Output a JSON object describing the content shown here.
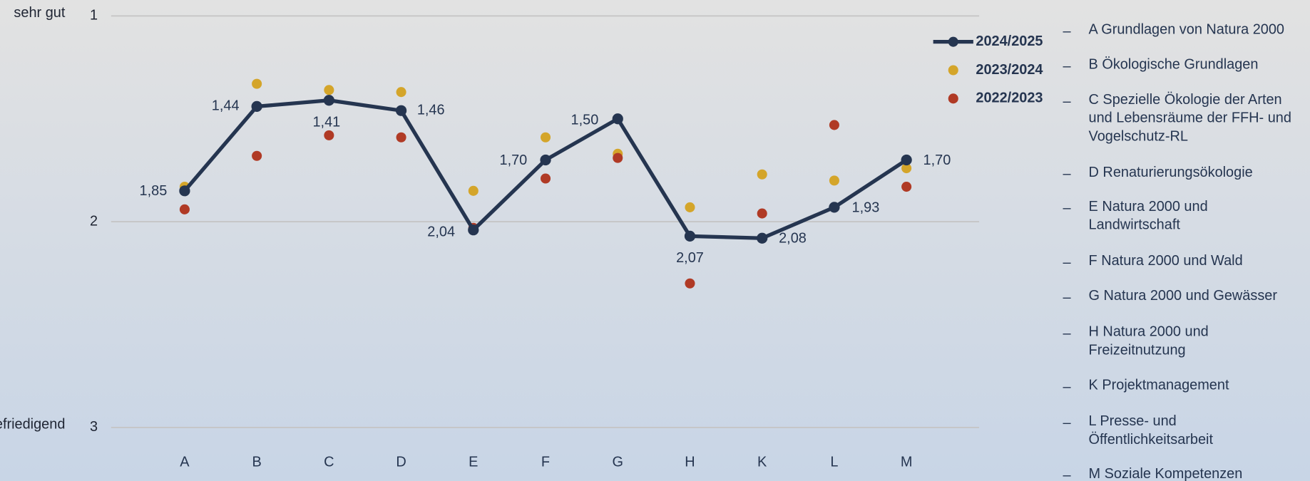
{
  "chart_data": {
    "type": "line",
    "categories": [
      "A",
      "B",
      "C",
      "D",
      "E",
      "F",
      "G",
      "H",
      "K",
      "L",
      "M"
    ],
    "ylim": [
      1,
      3
    ],
    "yticks": [
      1,
      2,
      3
    ],
    "y_inverted": true,
    "grid": true,
    "axis_labels": [
      {
        "value": 1,
        "label": "sehr gut"
      },
      {
        "value": 3,
        "label": "befriedigend"
      }
    ],
    "legend": "top-right",
    "series": [
      {
        "name": "2024/2025",
        "color": "#253550",
        "style": "line",
        "values": [
          1.85,
          1.44,
          1.41,
          1.46,
          2.04,
          1.7,
          1.5,
          2.07,
          2.08,
          1.93,
          1.7
        ],
        "value_labels": [
          "1,85",
          "1,44",
          "1,41",
          "1,46",
          "2,04",
          "1,70",
          "1,50",
          "2,07",
          "2,08",
          "1,93",
          "1,70"
        ]
      },
      {
        "name": "2023/2024",
        "color": "#d4a52a",
        "style": "dots",
        "values": [
          1.83,
          1.33,
          1.36,
          1.37,
          1.85,
          1.59,
          1.67,
          1.93,
          1.77,
          1.8,
          1.74
        ]
      },
      {
        "name": "2022/2023",
        "color": "#b03a25",
        "style": "dots",
        "values": [
          1.94,
          1.68,
          1.58,
          1.59,
          2.03,
          1.79,
          1.69,
          2.3,
          1.96,
          1.53,
          1.83
        ]
      }
    ],
    "key_list": [
      [
        "A Grundlagen von Natura 2000"
      ],
      [
        "B Ökologische Grundlagen"
      ],
      [
        "C Spezielle Ökologie der Arten",
        "und Lebensräume der FFH- und",
        "Vogelschutz-RL"
      ],
      [
        "D Renaturierungsökologie"
      ],
      [
        "E Natura 2000 und",
        "Landwirtschaft"
      ],
      [
        "F Natura 2000 und Wald"
      ],
      [
        "G Natura 2000 und Gewässer"
      ],
      [
        "H Natura 2000 und",
        "Freizeitnutzung"
      ],
      [
        "K Projektmanagement"
      ],
      [
        "L Presse- und",
        "Öffentlichkeitsarbeit"
      ],
      [
        "M Soziale Kompetenzen"
      ]
    ]
  }
}
